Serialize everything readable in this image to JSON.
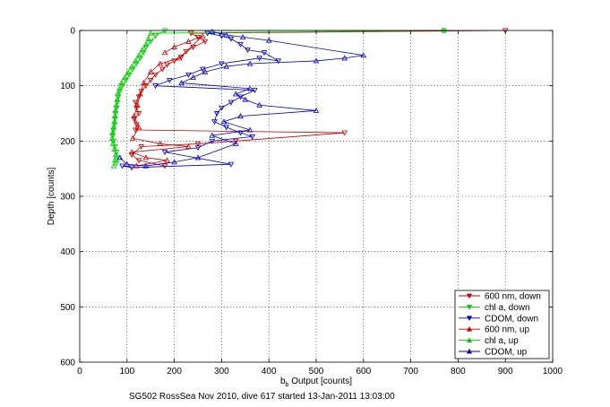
{
  "chart_data": {
    "type": "scatter",
    "title": "",
    "xlabel": "b",
    "xlabel_sub": "b",
    "xlabel_rest": " Output [counts]",
    "ylabel": "Depth [counts]",
    "caption": "SG502 RossSea Nov 2010, dive 617 started 13-Jan-2011 13:03:00",
    "xlim": [
      0,
      1000
    ],
    "ylim": [
      0,
      600
    ],
    "y_reversed": true,
    "grid": true,
    "legend_position": "bottom-right",
    "x_ticks": [
      "0",
      "100",
      "200",
      "300",
      "400",
      "500",
      "600",
      "700",
      "800",
      "900",
      "1000"
    ],
    "y_ticks": [
      "0",
      "100",
      "200",
      "300",
      "400",
      "500",
      "600"
    ],
    "series": [
      {
        "name": "600 nm, down",
        "color": "#cc0000",
        "marker": "triangle-down",
        "points": [
          [
            900,
            0
          ],
          [
            235,
            5
          ],
          [
            250,
            12
          ],
          [
            265,
            20
          ],
          [
            240,
            30
          ],
          [
            225,
            38
          ],
          [
            215,
            48
          ],
          [
            200,
            55
          ],
          [
            185,
            62
          ],
          [
            175,
            70
          ],
          [
            160,
            80
          ],
          [
            150,
            90
          ],
          [
            140,
            100
          ],
          [
            130,
            110
          ],
          [
            125,
            120
          ],
          [
            118,
            130
          ],
          [
            120,
            140
          ],
          [
            125,
            150
          ],
          [
            115,
            160
          ],
          [
            120,
            170
          ],
          [
            118,
            180
          ],
          [
            560,
            185
          ],
          [
            330,
            200
          ],
          [
            250,
            205
          ],
          [
            130,
            210
          ],
          [
            110,
            225
          ],
          [
            125,
            235
          ],
          [
            180,
            245
          ]
        ]
      },
      {
        "name": "chl a, down",
        "color": "#00cc00",
        "marker": "triangle-down",
        "points": [
          [
            770,
            0
          ],
          [
            180,
            0
          ],
          [
            160,
            10
          ],
          [
            150,
            20
          ],
          [
            140,
            30
          ],
          [
            135,
            40
          ],
          [
            128,
            50
          ],
          [
            120,
            60
          ],
          [
            112,
            70
          ],
          [
            105,
            80
          ],
          [
            98,
            90
          ],
          [
            90,
            100
          ],
          [
            85,
            110
          ],
          [
            82,
            120
          ],
          [
            80,
            130
          ],
          [
            78,
            140
          ],
          [
            76,
            150
          ],
          [
            75,
            160
          ],
          [
            74,
            170
          ],
          [
            72,
            180
          ],
          [
            70,
            190
          ],
          [
            72,
            200
          ],
          [
            75,
            210
          ],
          [
            78,
            220
          ],
          [
            80,
            230
          ],
          [
            78,
            240
          ]
        ]
      },
      {
        "name": "CDOM, down",
        "color": "#0000cc",
        "marker": "triangle-down",
        "points": [
          [
            270,
            5
          ],
          [
            300,
            10
          ],
          [
            320,
            15
          ],
          [
            340,
            25
          ],
          [
            355,
            35
          ],
          [
            390,
            40
          ],
          [
            420,
            55
          ],
          [
            380,
            50
          ],
          [
            300,
            60
          ],
          [
            260,
            70
          ],
          [
            230,
            80
          ],
          [
            190,
            90
          ],
          [
            160,
            100
          ],
          [
            370,
            108
          ],
          [
            340,
            120
          ],
          [
            320,
            130
          ],
          [
            300,
            140
          ],
          [
            290,
            150
          ],
          [
            285,
            165
          ],
          [
            310,
            175
          ],
          [
            340,
            185
          ],
          [
            365,
            192
          ],
          [
            280,
            200
          ],
          [
            250,
            212
          ],
          [
            180,
            220
          ],
          [
            320,
            242
          ],
          [
            110,
            248
          ],
          [
            90,
            245
          ]
        ]
      },
      {
        "name": "600 nm, up",
        "color": "#cc0000",
        "marker": "triangle-up",
        "points": [
          [
            180,
            40
          ],
          [
            200,
            30
          ],
          [
            230,
            20
          ],
          [
            260,
            10
          ],
          [
            210,
            50
          ],
          [
            170,
            60
          ],
          [
            150,
            75
          ],
          [
            135,
            95
          ],
          [
            128,
            115
          ],
          [
            122,
            135
          ],
          [
            115,
            155
          ],
          [
            125,
            175
          ],
          [
            112,
            195
          ],
          [
            170,
            205
          ],
          [
            230,
            210
          ],
          [
            110,
            220
          ],
          [
            140,
            230
          ],
          [
            185,
            235
          ],
          [
            120,
            245
          ]
        ]
      },
      {
        "name": "chl a, up",
        "color": "#00cc00",
        "marker": "triangle-up",
        "points": [
          [
            770,
            0
          ],
          [
            150,
            5
          ],
          [
            145,
            15
          ],
          [
            140,
            25
          ],
          [
            132,
            35
          ],
          [
            125,
            45
          ],
          [
            118,
            55
          ],
          [
            110,
            65
          ],
          [
            102,
            75
          ],
          [
            95,
            85
          ],
          [
            88,
            95
          ],
          [
            84,
            105
          ],
          [
            80,
            115
          ],
          [
            79,
            125
          ],
          [
            77,
            135
          ],
          [
            75,
            145
          ],
          [
            74,
            155
          ],
          [
            73,
            165
          ],
          [
            71,
            175
          ],
          [
            69,
            185
          ],
          [
            68,
            195
          ],
          [
            70,
            205
          ],
          [
            73,
            215
          ],
          [
            76,
            225
          ],
          [
            74,
            235
          ],
          [
            72,
            245
          ]
        ]
      },
      {
        "name": "CDOM, up",
        "color": "#0000cc",
        "marker": "triangle-up",
        "points": [
          [
            280,
            2
          ],
          [
            310,
            8
          ],
          [
            345,
            12
          ],
          [
            400,
            18
          ],
          [
            600,
            45
          ],
          [
            560,
            50
          ],
          [
            500,
            55
          ],
          [
            360,
            60
          ],
          [
            310,
            65
          ],
          [
            265,
            75
          ],
          [
            240,
            85
          ],
          [
            215,
            95
          ],
          [
            360,
            105
          ],
          [
            330,
            115
          ],
          [
            350,
            125
          ],
          [
            380,
            135
          ],
          [
            500,
            145
          ],
          [
            340,
            155
          ],
          [
            305,
            165
          ],
          [
            360,
            180
          ],
          [
            280,
            190
          ],
          [
            330,
            205
          ],
          [
            250,
            230
          ],
          [
            200,
            238
          ],
          [
            140,
            245
          ],
          [
            100,
            242
          ],
          [
            85,
            230
          ]
        ]
      }
    ]
  }
}
